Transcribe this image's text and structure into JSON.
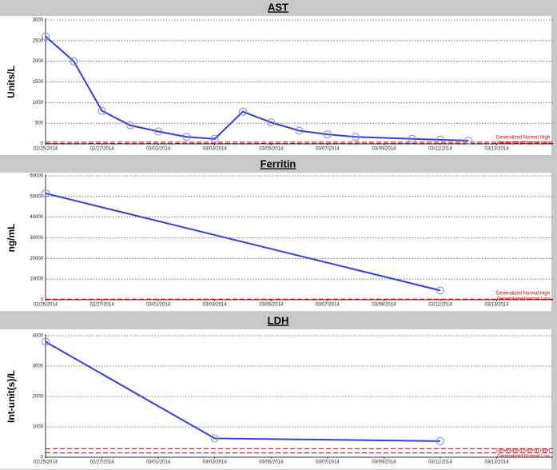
{
  "chart_data": [
    {
      "type": "line",
      "title": "AST",
      "y_label": "Units/L",
      "x": [
        "2014-02-25",
        "2014-02-26",
        "2014-02-27",
        "2014-02-28",
        "2014-03-01",
        "2014-03-02",
        "2014-03-03",
        "2014-03-04",
        "2014-03-05",
        "2014-03-06",
        "2014-03-07",
        "2014-03-08",
        "2014-03-10",
        "2014-03-11",
        "2014-03-12"
      ],
      "series": [
        {
          "color": "#2f3fe0",
          "values": [
            2600,
            2000,
            800,
            450,
            300,
            170,
            120,
            780,
            520,
            320,
            230,
            170,
            120,
            100,
            80
          ]
        }
      ],
      "xlim": [
        "2014-02-25",
        "2014-03-15"
      ],
      "xticks": [
        {
          "value": "2014-02-25",
          "label": "02/25/2014"
        },
        {
          "value": "2014-02-27",
          "label": "02/27/2014"
        },
        {
          "value": "2014-03-01",
          "label": "03/01/2014"
        },
        {
          "value": "2014-03-03",
          "label": "03/03/2014"
        },
        {
          "value": "2014-03-05",
          "label": "03/05/2014"
        },
        {
          "value": "2014-03-07",
          "label": "03/07/2014"
        },
        {
          "value": "2014-03-09",
          "label": "03/09/2014"
        },
        {
          "value": "2014-03-11",
          "label": "03/11/2014"
        },
        {
          "value": "2014-03-13",
          "label": "03/13/2014"
        }
      ],
      "ylim": [
        0,
        3000
      ],
      "yticks": [
        0,
        500,
        1000,
        1500,
        2000,
        2500,
        3000
      ],
      "grid": true,
      "reference_lines": [
        {
          "label": "Generalized Normal High",
          "value": 40,
          "color": "#d00000"
        },
        {
          "label": "Generalized Normal Low",
          "value": 10,
          "color": "#d00000"
        }
      ]
    },
    {
      "type": "line",
      "title": "Ferritin",
      "y_label": "ng/mL",
      "x": [
        "2014-02-25",
        "2014-03-11"
      ],
      "series": [
        {
          "color": "#2f3fe0",
          "values": [
            51500,
            4500
          ]
        }
      ],
      "xlim": [
        "2014-02-25",
        "2014-03-15"
      ],
      "xticks": [
        {
          "value": "2014-02-25",
          "label": "02/25/2014"
        },
        {
          "value": "2014-02-27",
          "label": "02/27/2014"
        },
        {
          "value": "2014-03-01",
          "label": "03/01/2014"
        },
        {
          "value": "2014-03-03",
          "label": "03/03/2014"
        },
        {
          "value": "2014-03-05",
          "label": "03/05/2014"
        },
        {
          "value": "2014-03-07",
          "label": "03/07/2014"
        },
        {
          "value": "2014-03-09",
          "label": "03/09/2014"
        },
        {
          "value": "2014-03-11",
          "label": "03/11/2014"
        },
        {
          "value": "2014-03-13",
          "label": "03/13/2014"
        }
      ],
      "ylim": [
        0,
        60000
      ],
      "yticks": [
        0,
        10000,
        20000,
        30000,
        40000,
        50000,
        60000
      ],
      "grid": true,
      "reference_lines": [
        {
          "label": "Generalized Normal High",
          "value": 300,
          "color": "#d00000"
        },
        {
          "label": "Generalized Normal Low",
          "value": 20,
          "color": "#d00000"
        }
      ]
    },
    {
      "type": "line",
      "title": "LDH",
      "y_label": "Int-unit(s)/L",
      "x": [
        "2014-02-25",
        "2014-03-03",
        "2014-03-11"
      ],
      "series": [
        {
          "color": "#2f3fe0",
          "values": [
            3800,
            620,
            530
          ]
        }
      ],
      "xlim": [
        "2014-02-25",
        "2014-03-15"
      ],
      "xticks": [
        {
          "value": "2014-02-25",
          "label": "02/25/2014"
        },
        {
          "value": "2014-02-27",
          "label": "02/27/2014"
        },
        {
          "value": "2014-03-01",
          "label": "03/01/2014"
        },
        {
          "value": "2014-03-03",
          "label": "03/03/2014"
        },
        {
          "value": "2014-03-05",
          "label": "03/05/2014"
        },
        {
          "value": "2014-03-07",
          "label": "03/07/2014"
        },
        {
          "value": "2014-03-09",
          "label": "03/09/2014"
        },
        {
          "value": "2014-03-11",
          "label": "03/11/2014"
        },
        {
          "value": "2014-03-13",
          "label": "03/13/2014"
        }
      ],
      "ylim": [
        0,
        4000
      ],
      "yticks": [
        0,
        1000,
        2000,
        3000,
        4000
      ],
      "grid": true,
      "reference_lines": [
        {
          "label": "Generalized Normal High",
          "value": 280,
          "color": "#d00000"
        },
        {
          "label": "Generalized Normal Low",
          "value": 140,
          "color": "#d00000"
        }
      ]
    }
  ]
}
